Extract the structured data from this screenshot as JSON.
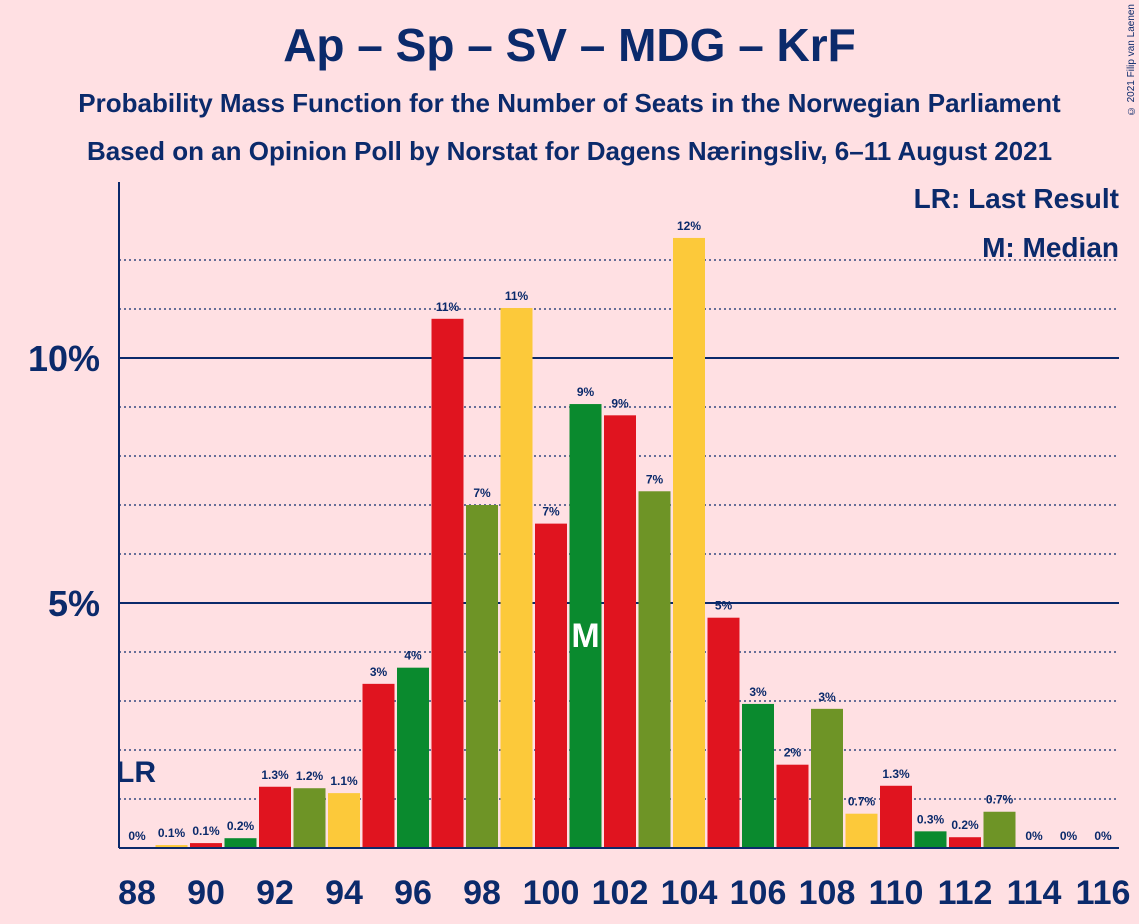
{
  "title": "Ap – Sp – SV – MDG – KrF",
  "subtitle1": "Probability Mass Function for the Number of Seats in the Norwegian Parliament",
  "subtitle2": "Based on an Opinion Poll by Norstat for Dagens Næringsliv, 6–11 August 2021",
  "copyright": "© 2021 Filip van Laenen",
  "legend": {
    "last_result": "LR: Last Result",
    "median": "M: Median"
  },
  "colors": {
    "background": "#ffe0e3",
    "text": "#0b2a6b",
    "red": "#e0141f",
    "green": "#0a8a2e",
    "olive": "#6e9426",
    "yellow": "#fcc93a"
  },
  "chart_data": {
    "type": "bar",
    "title": "Ap – Sp – SV – MDG – KrF",
    "xlabel": "",
    "ylabel": "",
    "ylim": [
      0,
      13.5
    ],
    "y_ticks": [
      {
        "value": 5,
        "label": "5%"
      },
      {
        "value": 10,
        "label": "10%"
      }
    ],
    "x_tick_labels": [
      "88",
      "90",
      "92",
      "94",
      "96",
      "98",
      "100",
      "102",
      "104",
      "106",
      "108",
      "110",
      "112",
      "114",
      "116"
    ],
    "grid": "dotted at every 1%, solid at 5% and 10%",
    "last_result": {
      "seats": 88,
      "label": "LR"
    },
    "median": {
      "seats": 101,
      "label": "M"
    },
    "bars": [
      {
        "seats": 88,
        "value": 0.0,
        "label": "0%",
        "color": "red"
      },
      {
        "seats": 89,
        "value": 0.06,
        "label": "0.1%",
        "color": "yellow"
      },
      {
        "seats": 90,
        "value": 0.1,
        "label": "0.1%",
        "color": "red"
      },
      {
        "seats": 91,
        "value": 0.2,
        "label": "0.2%",
        "color": "green"
      },
      {
        "seats": 92,
        "value": 1.25,
        "label": "1.3%",
        "color": "red"
      },
      {
        "seats": 93,
        "value": 1.22,
        "label": "1.2%",
        "color": "olive"
      },
      {
        "seats": 94,
        "value": 1.12,
        "label": "1.1%",
        "color": "yellow"
      },
      {
        "seats": 95,
        "value": 3.35,
        "label": "3%",
        "color": "red"
      },
      {
        "seats": 96,
        "value": 3.68,
        "label": "4%",
        "color": "green"
      },
      {
        "seats": 97,
        "value": 10.8,
        "label": "11%",
        "color": "red"
      },
      {
        "seats": 98,
        "value": 7.0,
        "label": "7%",
        "color": "olive"
      },
      {
        "seats": 99,
        "value": 11.02,
        "label": "11%",
        "color": "yellow"
      },
      {
        "seats": 100,
        "value": 6.62,
        "label": "7%",
        "color": "red"
      },
      {
        "seats": 101,
        "value": 9.06,
        "label": "9%",
        "color": "green"
      },
      {
        "seats": 102,
        "value": 8.83,
        "label": "9%",
        "color": "red"
      },
      {
        "seats": 103,
        "value": 7.28,
        "label": "7%",
        "color": "olive"
      },
      {
        "seats": 104,
        "value": 12.45,
        "label": "12%",
        "color": "yellow"
      },
      {
        "seats": 105,
        "value": 4.7,
        "label": "5%",
        "color": "red"
      },
      {
        "seats": 106,
        "value": 2.94,
        "label": "3%",
        "color": "green"
      },
      {
        "seats": 107,
        "value": 1.7,
        "label": "2%",
        "color": "red"
      },
      {
        "seats": 108,
        "value": 2.84,
        "label": "3%",
        "color": "olive"
      },
      {
        "seats": 109,
        "value": 0.7,
        "label": "0.7%",
        "color": "yellow"
      },
      {
        "seats": 110,
        "value": 1.27,
        "label": "1.3%",
        "color": "red"
      },
      {
        "seats": 111,
        "value": 0.34,
        "label": "0.3%",
        "color": "green"
      },
      {
        "seats": 112,
        "value": 0.22,
        "label": "0.2%",
        "color": "red"
      },
      {
        "seats": 113,
        "value": 0.74,
        "label": "0.7%",
        "color": "olive"
      },
      {
        "seats": 114,
        "value": 0.0,
        "label": "0%",
        "color": "yellow"
      },
      {
        "seats": 115,
        "value": 0.0,
        "label": "0%",
        "color": "red"
      },
      {
        "seats": 116,
        "value": 0.0,
        "label": "0%",
        "color": "green"
      }
    ]
  }
}
